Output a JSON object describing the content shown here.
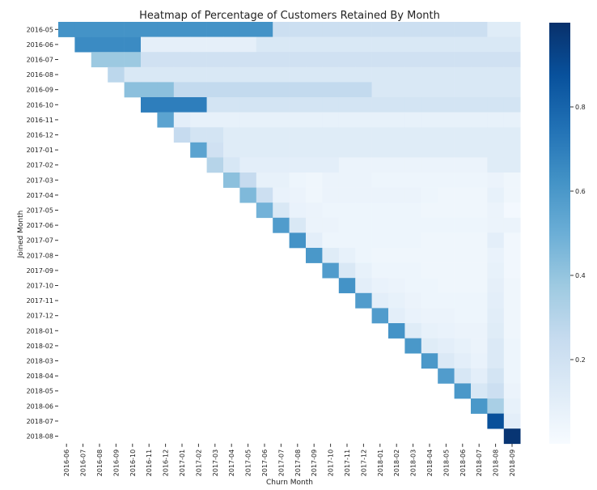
{
  "chart_data": {
    "type": "heatmap",
    "title": "Heatmap of Percentage of Customers Retained By Month",
    "xlabel": "Churn Month",
    "ylabel": "Joined Month",
    "x_categories": [
      "2016-06",
      "2016-07",
      "2016-08",
      "2016-09",
      "2016-10",
      "2016-11",
      "2016-12",
      "2017-01",
      "2017-02",
      "2017-03",
      "2017-04",
      "2017-05",
      "2017-06",
      "2017-07",
      "2017-08",
      "2017-09",
      "2017-10",
      "2017-11",
      "2017-12",
      "2018-01",
      "2018-02",
      "2018-03",
      "2018-04",
      "2018-05",
      "2018-06",
      "2018-07",
      "2018-08",
      "2018-09"
    ],
    "y_categories": [
      "2016-05",
      "2016-06",
      "2016-07",
      "2016-08",
      "2016-09",
      "2016-10",
      "2016-11",
      "2016-12",
      "2017-01",
      "2017-02",
      "2017-03",
      "2017-04",
      "2017-05",
      "2017-06",
      "2017-07",
      "2017-08",
      "2017-09",
      "2017-10",
      "2017-11",
      "2017-12",
      "2018-01",
      "2018-02",
      "2018-03",
      "2018-04",
      "2018-05",
      "2018-06",
      "2018-07",
      "2018-08"
    ],
    "colorbar_ticks": [
      "0.2",
      "0.4",
      "0.6",
      "0.8"
    ],
    "value_range": [
      0,
      1
    ],
    "colormap": "Blues",
    "rows": [
      [
        0.62,
        0.62,
        0.62,
        0.62,
        0.62,
        0.62,
        0.62,
        0.62,
        0.62,
        0.62,
        0.62,
        0.62,
        0.62,
        0.22,
        0.22,
        0.22,
        0.22,
        0.22,
        0.22,
        0.22,
        0.22,
        0.22,
        0.22,
        0.22,
        0.22,
        0.22,
        0.12,
        0.12
      ],
      [
        null,
        0.65,
        0.65,
        0.65,
        0.65,
        0.09,
        0.09,
        0.09,
        0.09,
        0.09,
        0.09,
        0.09,
        0.15,
        0.15,
        0.15,
        0.15,
        0.15,
        0.15,
        0.15,
        0.15,
        0.15,
        0.15,
        0.15,
        0.15,
        0.15,
        0.15,
        0.15,
        0.15
      ],
      [
        null,
        null,
        0.38,
        0.38,
        0.38,
        0.2,
        0.2,
        0.2,
        0.2,
        0.2,
        0.2,
        0.2,
        0.2,
        0.2,
        0.2,
        0.2,
        0.2,
        0.2,
        0.2,
        0.2,
        0.2,
        0.2,
        0.2,
        0.2,
        0.2,
        0.2,
        0.2,
        0.2
      ],
      [
        null,
        null,
        null,
        0.28,
        0.15,
        0.15,
        0.15,
        0.15,
        0.15,
        0.15,
        0.15,
        0.15,
        0.15,
        0.15,
        0.15,
        0.15,
        0.15,
        0.15,
        0.15,
        0.15,
        0.15,
        0.15,
        0.15,
        0.15,
        0.15,
        0.15,
        0.15,
        0.15
      ],
      [
        null,
        null,
        null,
        null,
        0.42,
        0.42,
        0.42,
        0.26,
        0.26,
        0.26,
        0.26,
        0.26,
        0.26,
        0.26,
        0.26,
        0.26,
        0.26,
        0.26,
        0.26,
        0.15,
        0.15,
        0.15,
        0.15,
        0.15,
        0.15,
        0.15,
        0.15,
        0.15
      ],
      [
        null,
        null,
        null,
        null,
        null,
        0.7,
        0.7,
        0.7,
        0.7,
        0.18,
        0.18,
        0.18,
        0.18,
        0.18,
        0.18,
        0.18,
        0.18,
        0.18,
        0.18,
        0.18,
        0.18,
        0.18,
        0.18,
        0.18,
        0.18,
        0.18,
        0.18,
        0.18
      ],
      [
        null,
        null,
        null,
        null,
        null,
        null,
        0.55,
        0.1,
        0.08,
        0.08,
        0.08,
        0.08,
        0.08,
        0.08,
        0.08,
        0.08,
        0.08,
        0.08,
        0.08,
        0.08,
        0.08,
        0.08,
        0.08,
        0.08,
        0.08,
        0.08,
        0.08,
        0.08
      ],
      [
        null,
        null,
        null,
        null,
        null,
        null,
        null,
        0.25,
        0.18,
        0.18,
        0.12,
        0.12,
        0.12,
        0.12,
        0.12,
        0.12,
        0.12,
        0.12,
        0.12,
        0.12,
        0.12,
        0.12,
        0.12,
        0.12,
        0.12,
        0.12,
        0.12,
        0.12
      ],
      [
        null,
        null,
        null,
        null,
        null,
        null,
        null,
        null,
        0.55,
        0.2,
        0.12,
        0.12,
        0.12,
        0.12,
        0.12,
        0.12,
        0.12,
        0.12,
        0.12,
        0.12,
        0.12,
        0.12,
        0.12,
        0.12,
        0.12,
        0.12,
        0.12,
        0.12
      ],
      [
        null,
        null,
        null,
        null,
        null,
        null,
        null,
        null,
        null,
        0.3,
        0.16,
        0.1,
        0.1,
        0.1,
        0.1,
        0.1,
        0.1,
        0.06,
        0.06,
        0.06,
        0.06,
        0.06,
        0.06,
        0.06,
        0.06,
        0.06,
        0.12,
        0.12
      ],
      [
        null,
        null,
        null,
        null,
        null,
        null,
        null,
        null,
        null,
        null,
        0.42,
        0.25,
        0.08,
        0.08,
        0.05,
        0.04,
        0.06,
        0.06,
        0.06,
        0.05,
        0.05,
        0.05,
        0.05,
        0.05,
        0.05,
        0.05,
        0.06,
        0.04
      ],
      [
        null,
        null,
        null,
        null,
        null,
        null,
        null,
        null,
        null,
        null,
        null,
        0.45,
        0.22,
        0.07,
        0.06,
        0.04,
        0.06,
        0.06,
        0.06,
        0.06,
        0.06,
        0.06,
        0.05,
        0.04,
        0.04,
        0.04,
        0.08,
        0.04
      ],
      [
        null,
        null,
        null,
        null,
        null,
        null,
        null,
        null,
        null,
        null,
        null,
        null,
        0.48,
        0.15,
        0.07,
        0.06,
        0.05,
        0.05,
        0.05,
        0.05,
        0.05,
        0.05,
        0.04,
        0.04,
        0.04,
        0.04,
        0.06,
        0.02
      ],
      [
        null,
        null,
        null,
        null,
        null,
        null,
        null,
        null,
        null,
        null,
        null,
        null,
        null,
        0.58,
        0.15,
        0.06,
        0.06,
        0.05,
        0.05,
        0.05,
        0.05,
        0.05,
        0.05,
        0.05,
        0.05,
        0.05,
        0.06,
        0.06
      ],
      [
        null,
        null,
        null,
        null,
        null,
        null,
        null,
        null,
        null,
        null,
        null,
        null,
        null,
        null,
        0.62,
        0.1,
        0.05,
        0.05,
        0.05,
        0.05,
        0.05,
        0.05,
        0.04,
        0.04,
        0.04,
        0.04,
        0.1,
        0.03
      ],
      [
        null,
        null,
        null,
        null,
        null,
        null,
        null,
        null,
        null,
        null,
        null,
        null,
        null,
        null,
        null,
        0.6,
        0.12,
        0.08,
        0.05,
        0.04,
        0.04,
        0.04,
        0.04,
        0.04,
        0.04,
        0.04,
        0.07,
        0.03
      ],
      [
        null,
        null,
        null,
        null,
        null,
        null,
        null,
        null,
        null,
        null,
        null,
        null,
        null,
        null,
        null,
        null,
        0.58,
        0.15,
        0.08,
        0.05,
        0.05,
        0.05,
        0.04,
        0.04,
        0.04,
        0.04,
        0.08,
        0.03
      ],
      [
        null,
        null,
        null,
        null,
        null,
        null,
        null,
        null,
        null,
        null,
        null,
        null,
        null,
        null,
        null,
        null,
        null,
        0.62,
        0.1,
        0.07,
        0.06,
        0.05,
        0.05,
        0.04,
        0.04,
        0.04,
        0.09,
        0.04
      ],
      [
        null,
        null,
        null,
        null,
        null,
        null,
        null,
        null,
        null,
        null,
        null,
        null,
        null,
        null,
        null,
        null,
        null,
        null,
        0.58,
        0.1,
        0.08,
        0.06,
        0.05,
        0.05,
        0.05,
        0.05,
        0.1,
        0.04
      ],
      [
        null,
        null,
        null,
        null,
        null,
        null,
        null,
        null,
        null,
        null,
        null,
        null,
        null,
        null,
        null,
        null,
        null,
        null,
        null,
        0.58,
        0.1,
        0.07,
        0.06,
        0.06,
        0.05,
        0.05,
        0.11,
        0.04
      ],
      [
        null,
        null,
        null,
        null,
        null,
        null,
        null,
        null,
        null,
        null,
        null,
        null,
        null,
        null,
        null,
        null,
        null,
        null,
        null,
        null,
        0.62,
        0.12,
        0.08,
        0.07,
        0.06,
        0.06,
        0.12,
        0.04
      ],
      [
        null,
        null,
        null,
        null,
        null,
        null,
        null,
        null,
        null,
        null,
        null,
        null,
        null,
        null,
        null,
        null,
        null,
        null,
        null,
        null,
        null,
        0.6,
        0.12,
        0.1,
        0.08,
        0.06,
        0.14,
        0.05
      ],
      [
        null,
        null,
        null,
        null,
        null,
        null,
        null,
        null,
        null,
        null,
        null,
        null,
        null,
        null,
        null,
        null,
        null,
        null,
        null,
        null,
        null,
        null,
        0.6,
        0.14,
        0.1,
        0.07,
        0.14,
        0.05
      ],
      [
        null,
        null,
        null,
        null,
        null,
        null,
        null,
        null,
        null,
        null,
        null,
        null,
        null,
        null,
        null,
        null,
        null,
        null,
        null,
        null,
        null,
        null,
        null,
        0.58,
        0.16,
        0.1,
        0.18,
        0.05
      ],
      [
        null,
        null,
        null,
        null,
        null,
        null,
        null,
        null,
        null,
        null,
        null,
        null,
        null,
        null,
        null,
        null,
        null,
        null,
        null,
        null,
        null,
        null,
        null,
        null,
        0.6,
        0.16,
        0.22,
        0.06
      ],
      [
        null,
        null,
        null,
        null,
        null,
        null,
        null,
        null,
        null,
        null,
        null,
        null,
        null,
        null,
        null,
        null,
        null,
        null,
        null,
        null,
        null,
        null,
        null,
        null,
        null,
        0.6,
        0.34,
        0.08
      ],
      [
        null,
        null,
        null,
        null,
        null,
        null,
        null,
        null,
        null,
        null,
        null,
        null,
        null,
        null,
        null,
        null,
        null,
        null,
        null,
        null,
        null,
        null,
        null,
        null,
        null,
        null,
        0.88,
        0.1
      ],
      [
        null,
        null,
        null,
        null,
        null,
        null,
        null,
        null,
        null,
        null,
        null,
        null,
        null,
        null,
        null,
        null,
        null,
        null,
        null,
        null,
        null,
        null,
        null,
        null,
        null,
        null,
        null,
        0.98
      ]
    ]
  }
}
